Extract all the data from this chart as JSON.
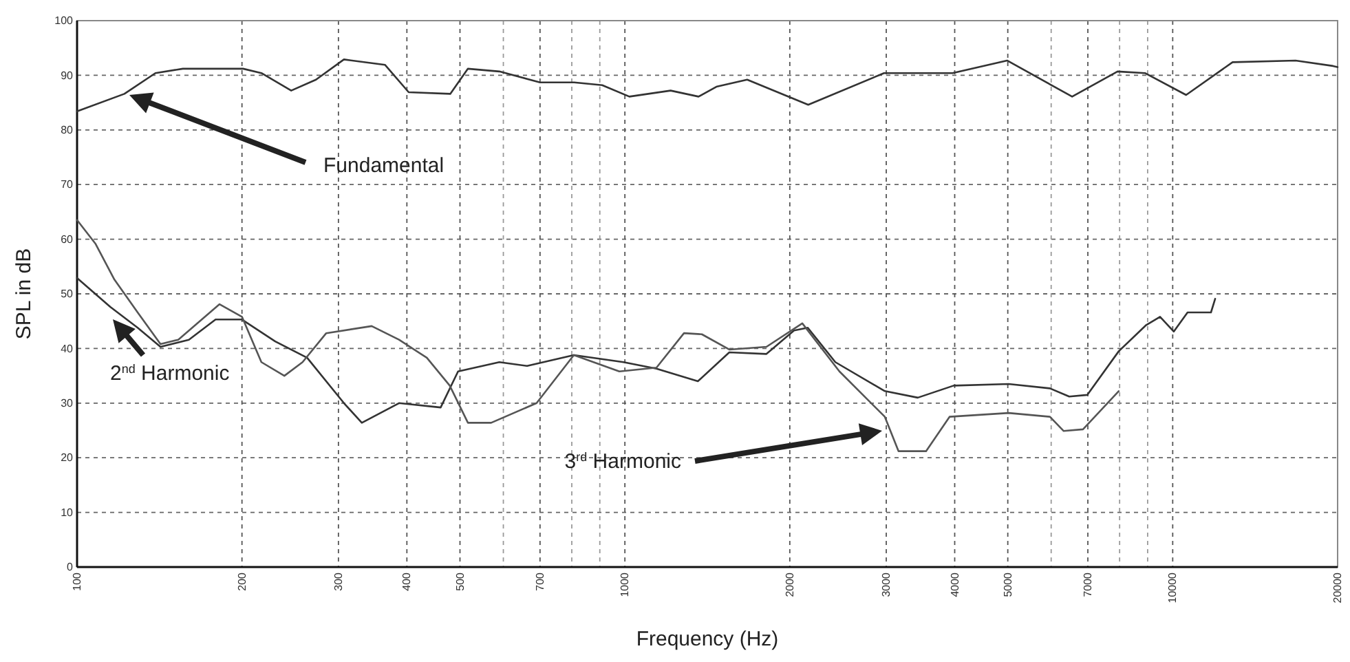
{
  "chart_data": {
    "type": "line",
    "xlabel": "Frequency (Hz)",
    "ylabel": "SPL in dB",
    "log": "x",
    "grid": true,
    "line_style": "solid",
    "marker": "none",
    "xlim": [
      100,
      20000
    ],
    "ylim": [
      0,
      100
    ],
    "xticks": [
      100,
      200,
      300,
      400,
      500,
      {
        "value": 600,
        "label": null
      },
      700,
      {
        "value": 800,
        "label": null
      },
      {
        "value": 900,
        "label": null
      },
      1000,
      2000,
      3000,
      4000,
      5000,
      {
        "value": 6000,
        "label": null
      },
      7000,
      {
        "value": 8000,
        "label": null
      },
      {
        "value": 9000,
        "label": null
      },
      10000,
      20000
    ],
    "yticks": [
      0,
      10,
      20,
      30,
      40,
      50,
      60,
      70,
      80,
      90,
      100
    ],
    "series": [
      {
        "color": "#333333",
        "x": [
          100,
          122,
          139,
          156,
          201,
          217,
          246,
          273,
          307,
          365,
          403,
          480,
          517,
          590,
          700,
          808,
          909,
          1019,
          1212,
          1363,
          1469,
          1672,
          2161,
          2972,
          3963,
          4985,
          6553,
          7931,
          8899,
          10580,
          12862,
          16760,
          19620,
          20000
        ],
        "values": [
          83.4,
          86.6,
          90.4,
          91.2,
          91.2,
          90.4,
          87.2,
          89.2,
          92.9,
          91.9,
          86.9,
          86.6,
          91.2,
          90.7,
          88.7,
          88.7,
          88.2,
          86.1,
          87.2,
          86.1,
          87.9,
          89.2,
          84.6,
          90.4,
          90.4,
          92.7,
          86.1,
          90.7,
          90.4,
          86.4,
          92.4,
          92.7,
          91.7,
          91.5
        ]
      },
      {
        "color": "#333333",
        "x": [
          100,
          115,
          129,
          142,
          160,
          179,
          200,
          230,
          263,
          307,
          331,
          387,
          461,
          496,
          590,
          663,
          807,
          994,
          1142,
          1359,
          1551,
          1813,
          2036,
          2157,
          2422,
          2982,
          3425,
          3982,
          5018,
          5969,
          6473,
          6982,
          7971,
          8947,
          9482,
          10047,
          10644,
          11745,
          11955
        ],
        "values": [
          52.9,
          47.6,
          43.8,
          40.3,
          41.6,
          45.3,
          45.3,
          41.3,
          38.3,
          30.0,
          26.4,
          30.0,
          29.2,
          35.8,
          37.5,
          36.8,
          38.8,
          37.5,
          36.3,
          34.0,
          39.3,
          39.0,
          43.3,
          43.8,
          37.5,
          32.2,
          31.0,
          33.2,
          33.5,
          32.7,
          31.2,
          31.5,
          39.5,
          44.3,
          45.8,
          43.1,
          46.6,
          46.6,
          49.1
        ]
      },
      {
        "color": "#555555",
        "x": [
          100,
          108,
          117,
          129,
          142,
          153,
          182,
          200,
          217,
          239,
          258,
          285,
          345,
          387,
          435,
          479,
          517,
          570,
          690,
          807,
          977,
          1142,
          1282,
          1382,
          1551,
          1813,
          2108,
          2464,
          2982,
          3159,
          3546,
          3914,
          5018,
          5969,
          6324,
          6859,
          7971
        ],
        "values": [
          63.5,
          59.2,
          52.6,
          46.6,
          40.8,
          41.6,
          48.1,
          45.8,
          37.5,
          35.0,
          37.5,
          42.8,
          44.1,
          41.6,
          38.3,
          33.2,
          26.4,
          26.4,
          30.0,
          38.8,
          35.8,
          36.5,
          42.8,
          42.6,
          39.8,
          40.3,
          44.6,
          35.8,
          27.5,
          21.2,
          21.2,
          27.5,
          28.2,
          27.5,
          24.9,
          25.2,
          32.2
        ]
      }
    ],
    "annotations": [
      "Fundamental",
      "2$^{nd}$ Harmonic",
      "3$^{rd}$ Harmonic"
    ]
  }
}
